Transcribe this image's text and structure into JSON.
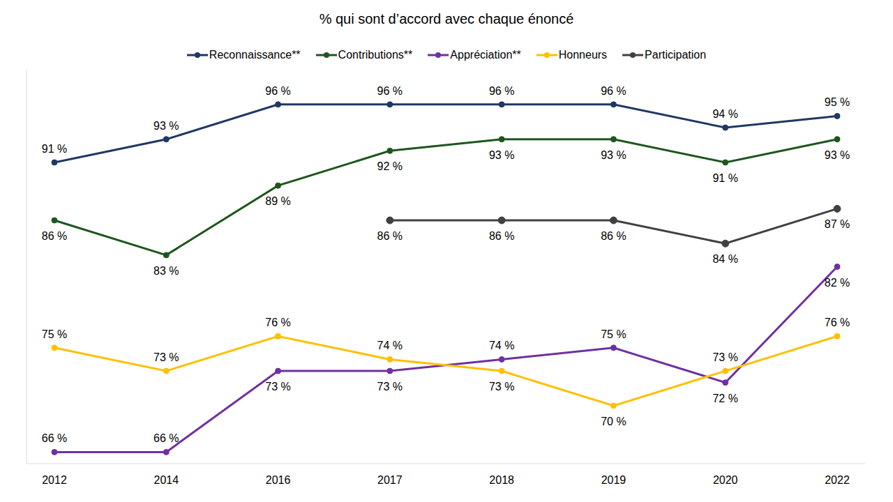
{
  "chart_data": {
    "type": "line",
    "title": "% qui sont d’accord avec chaque énoncé",
    "categories": [
      "2012",
      "2014",
      "2016",
      "2017",
      "2018",
      "2019",
      "2020",
      "2022"
    ],
    "ylim": [
      65,
      99
    ],
    "tick_labels": "x",
    "grid": false,
    "legend": "top",
    "data_labels": true,
    "marker": "circle",
    "series": [
      {
        "name": "Reconnaissance**",
        "color": "#1f3864",
        "values": [
          91,
          93,
          96,
          96,
          96,
          96,
          94,
          95
        ],
        "value_labels": [
          "91 %",
          "93 %",
          "96 %",
          "96 %",
          "96 %",
          "96 %",
          "94 %",
          "95 %"
        ]
      },
      {
        "name": "Contributions**",
        "color": "#1e561e",
        "values": [
          86,
          83,
          89,
          92,
          93,
          93,
          91,
          93
        ],
        "value_labels": [
          "86 %",
          "83 %",
          "89 %",
          "92 %",
          "93 %",
          "93 %",
          "91 %",
          "93 %"
        ]
      },
      {
        "name": "Appréciation**",
        "color": "#7030a0",
        "values": [
          66,
          66,
          73,
          73,
          74,
          75,
          72,
          82
        ],
        "value_labels": [
          "66 %",
          "66 %",
          "73 %",
          "73 %",
          "74 %",
          "75 %",
          "72 %",
          "82 %"
        ]
      },
      {
        "name": "Honneurs",
        "color": "#ffc000",
        "values": [
          75,
          73,
          76,
          74,
          73,
          70,
          73,
          76
        ],
        "value_labels": [
          "75 %",
          "73 %",
          "76 %",
          "74 %",
          "73 %",
          "70 %",
          "73 %",
          "76 %"
        ]
      },
      {
        "name": "Participation",
        "color": "#404040",
        "values": [
          null,
          null,
          null,
          86,
          86,
          86,
          84,
          87
        ],
        "value_labels": [
          null,
          null,
          null,
          "86 %",
          "86 %",
          "86 %",
          "84 %",
          "87 %"
        ]
      }
    ]
  }
}
